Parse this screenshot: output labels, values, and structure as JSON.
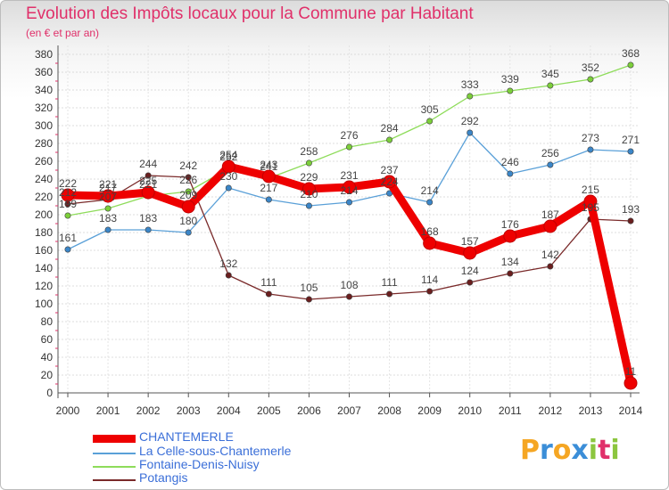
{
  "header": {
    "title": "Evolution des Impôts locaux pour la Commune par Habitant",
    "subtitle": "(en € et par an)"
  },
  "brand": {
    "letters": [
      "P",
      "r",
      "o",
      "x",
      "i",
      "t",
      "i"
    ],
    "colors": [
      "#f5a623",
      "#3b8ed8",
      "#f5a623",
      "#3b8ed8",
      "#8cc63f",
      "#e0306a",
      "#8cc63f"
    ]
  },
  "chart_data": {
    "type": "line",
    "title": "Evolution des Impôts locaux pour la Commune par Habitant",
    "subtitle": "(en € et par an)",
    "xlabel": "",
    "ylabel": "",
    "x": [
      "2000",
      "2001",
      "2002",
      "2003",
      "2004",
      "2005",
      "2006",
      "2007",
      "2008",
      "2009",
      "2010",
      "2011",
      "2012",
      "2013",
      "2014"
    ],
    "ylim": [
      0,
      380
    ],
    "yticks": [
      0,
      20,
      40,
      60,
      80,
      100,
      120,
      140,
      160,
      180,
      200,
      220,
      240,
      260,
      280,
      300,
      320,
      340,
      360,
      380
    ],
    "grid": true,
    "legend_position": "bottom-left",
    "series": [
      {
        "name": "Fontaine-Denis-Nuisy",
        "color": "#8edc5a",
        "marker_color": "#7ccf3a",
        "values": [
          199,
          207,
          221,
          226,
          252,
          241,
          258,
          276,
          284,
          305,
          333,
          339,
          345,
          352,
          368
        ],
        "labels": [
          "199",
          "207",
          "221",
          "226",
          "252",
          "241",
          "258",
          "276",
          "284",
          "305",
          "333",
          "339",
          "345",
          "352",
          "368"
        ]
      },
      {
        "name": "La Celle-sous-Chantemerle",
        "color": "#5aa0d8",
        "marker_color": "#3b86c8",
        "values": [
          161,
          183,
          183,
          180,
          230,
          217,
          210,
          214,
          224,
          214,
          292,
          246,
          256,
          273,
          271
        ],
        "labels": [
          "161",
          "183",
          "183",
          "180",
          "230",
          "217",
          "210",
          "214",
          "224",
          "214",
          "292",
          "246",
          "256",
          "273",
          "271"
        ]
      },
      {
        "name": "Potangis",
        "color": "#7a2a2a",
        "marker_color": "#6a1e1e",
        "values": [
          212,
          217,
          244,
          242,
          132,
          111,
          105,
          108,
          111,
          114,
          124,
          134,
          142,
          195,
          193
        ],
        "labels": [
          "212",
          "217",
          "244",
          "242",
          "132",
          "111",
          "105",
          "108",
          "111",
          "114",
          "124",
          "134",
          "142",
          "195",
          "193"
        ]
      },
      {
        "name": "CHANTEMERLE",
        "color": "#ee0000",
        "marker_color": "#ee0000",
        "bold": true,
        "values": [
          222,
          221,
          225,
          209,
          254,
          243,
          229,
          231,
          237,
          168,
          157,
          176,
          187,
          215,
          11
        ],
        "labels": [
          "222",
          "221",
          "225",
          "209",
          "254",
          "243",
          "229",
          "231",
          "237",
          "168",
          "157",
          "176",
          "187",
          "215",
          "11"
        ]
      }
    ],
    "legend": [
      {
        "name": "CHANTEMERLE",
        "color": "#ee0000",
        "text_color": "#3b6fd8",
        "thick": true
      },
      {
        "name": "La Celle-sous-Chantemerle",
        "color": "#5aa0d8",
        "text_color": "#3b6fd8",
        "thick": false
      },
      {
        "name": "Fontaine-Denis-Nuisy",
        "color": "#8edc5a",
        "text_color": "#3b6fd8",
        "thick": false
      },
      {
        "name": "Potangis",
        "color": "#7a2a2a",
        "text_color": "#3b6fd8",
        "thick": false
      }
    ]
  }
}
